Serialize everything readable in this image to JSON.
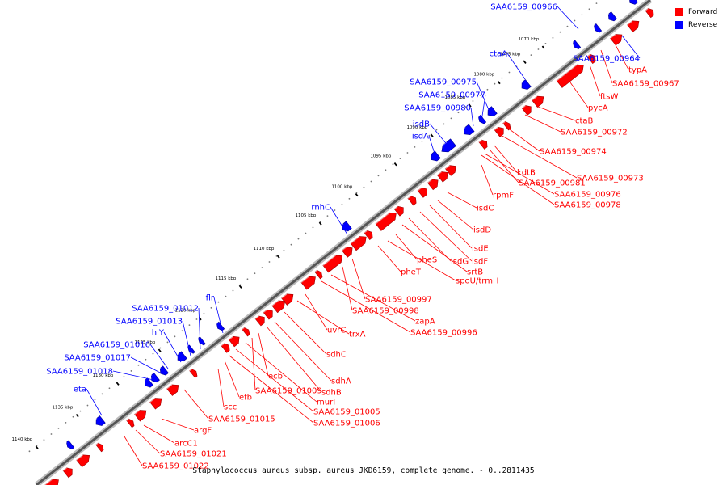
{
  "legend": {
    "forward_label": "Forward",
    "reverse_label": "Reverse",
    "forward_color": "#ff0000",
    "reverse_color": "#0000ff"
  },
  "caption": "Staphylococcus aureus subsp. aureus JKD6159, complete genome. - 0..2811435",
  "ticks": [
    "1070 kbp",
    "1075 kbp",
    "1080 kbp",
    "1085 kbp",
    "1090 kbp",
    "1095 kbp",
    "1100 kbp",
    "1105 kbp",
    "1110 kbp",
    "1115 kbp",
    "1120 kbp",
    "1125 kbp",
    "1130 kbp",
    "1135 kbp",
    "1140 kbp"
  ],
  "forward_labels": [
    "typA",
    "SAA6159_00967",
    "ftsW",
    "pycA",
    "ctaB",
    "SAA6159_00972",
    "SAA6159_00974",
    "SAA6159_00973",
    "kdtB",
    "SAA6159_00981",
    "SAA6159_00976",
    "SAA6159_00978",
    "rpmF",
    "isdC",
    "isdD",
    "isdE",
    "isdF",
    "isdG",
    "srtB",
    "pheS",
    "spoU/trmH",
    "pheT",
    "SAA6159_00997",
    "SAA6159_00998",
    "zapA",
    "SAA6159_00996",
    "uvrC",
    "trxA",
    "sdhC",
    "sdhA",
    "sdhB",
    "ecb",
    "SAA6159_01009",
    "murI",
    "SAA6159_01005",
    "SAA6159_01006",
    "efb",
    "scc",
    "SAA6159_01015",
    "argF",
    "arcC1",
    "SAA6159_01021",
    "SAA6159_01022"
  ],
  "reverse_labels": [
    "SAA6159_00966",
    "SAA6159_00964",
    "ctaA",
    "SAA6159_00975",
    "SAA6159_00977",
    "SAA6159_00980",
    "isdB",
    "isdA",
    "rnhC",
    "flr",
    "SAA6159_01012",
    "SAA6159_01013",
    "hlY",
    "SAA6159_01016",
    "SAA6159_01017",
    "SAA6159_01018",
    "eta"
  ]
}
